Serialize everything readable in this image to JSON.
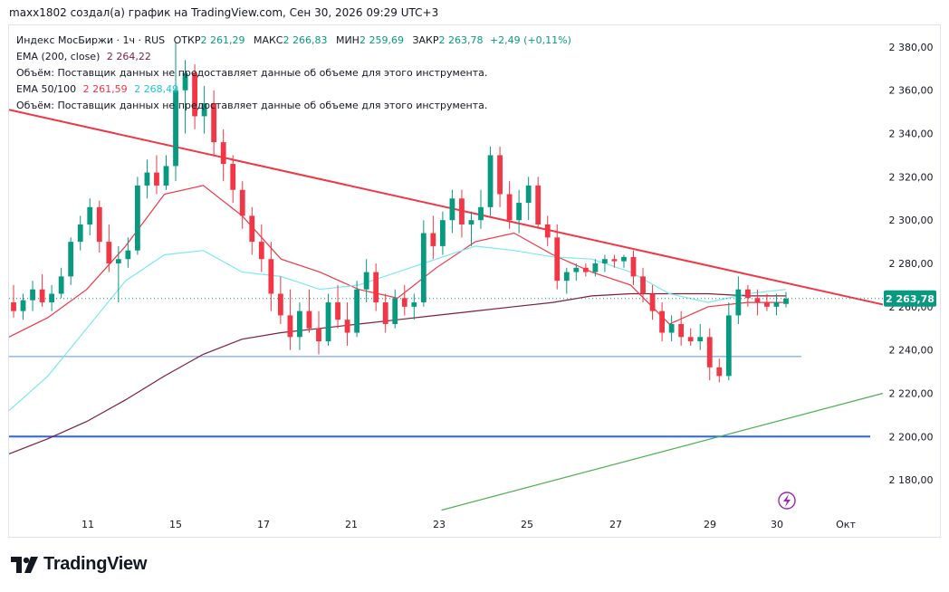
{
  "header": {
    "attribution": "maxx1802 создал(а) график на TradingView.com, Сен 30, 2026 09:29 UTC+3"
  },
  "legend": {
    "symbol": "Индекс МосБиржи · 1ч · RUS",
    "open_label": "ОТКР",
    "open_value": "2 261,29",
    "high_label": "МАКС",
    "high_value": "2 266,83",
    "low_label": "МИН",
    "low_value": "2 259,69",
    "close_label": "ЗАКР",
    "close_value": "2 263,78",
    "change": "+2,49 (+0,11%)",
    "ema200_label": "EMA (200, close)",
    "ema200_value": "2 264,22",
    "volume_note_1": "Объём: Поставщик данных не предоставляет данные об объеме для этого инструмента.",
    "ema50100_label": "EMA 50/100",
    "ema50_value": "2 261,59",
    "ema100_value": "2 268,49",
    "volume_note_2": "Объём: Поставщик данных не предоставляет данные об объеме для этого инструмента."
  },
  "logo": {
    "text": "TradingView"
  },
  "chart_data": {
    "type": "candlestick",
    "y_axis": {
      "min": 2165,
      "max": 2390,
      "ticks": [
        2180,
        2200,
        2220,
        2240,
        2260,
        2280,
        2300,
        2320,
        2340,
        2360,
        2380
      ],
      "tick_labels": [
        "2 180,00",
        "2 200,00",
        "2 220,00",
        "2 240,00",
        "2 260,00",
        "2 280,00",
        "2 300,00",
        "2 320,00",
        "2 340,00",
        "2 360,00",
        "2 380,00"
      ]
    },
    "x_axis": {
      "tick_labels": [
        "11",
        "15",
        "17",
        "21",
        "23",
        "25",
        "27",
        "29",
        "30",
        "Окт"
      ]
    },
    "last_price_label": "2 263,78",
    "last_price": 2263.78,
    "up_color": "#089981",
    "down_color": "#f23645",
    "candles": [
      {
        "o": 2262,
        "h": 2270,
        "l": 2255,
        "c": 2258
      },
      {
        "o": 2258,
        "h": 2266,
        "l": 2254,
        "c": 2263
      },
      {
        "o": 2263,
        "h": 2272,
        "l": 2258,
        "c": 2268
      },
      {
        "o": 2268,
        "h": 2275,
        "l": 2260,
        "c": 2262
      },
      {
        "o": 2262,
        "h": 2270,
        "l": 2258,
        "c": 2266
      },
      {
        "o": 2266,
        "h": 2278,
        "l": 2264,
        "c": 2274
      },
      {
        "o": 2274,
        "h": 2292,
        "l": 2270,
        "c": 2290
      },
      {
        "o": 2290,
        "h": 2302,
        "l": 2286,
        "c": 2298
      },
      {
        "o": 2298,
        "h": 2310,
        "l": 2293,
        "c": 2306
      },
      {
        "o": 2306,
        "h": 2309,
        "l": 2285,
        "c": 2290
      },
      {
        "o": 2290,
        "h": 2298,
        "l": 2276,
        "c": 2280
      },
      {
        "o": 2280,
        "h": 2288,
        "l": 2262,
        "c": 2282
      },
      {
        "o": 2282,
        "h": 2292,
        "l": 2278,
        "c": 2286
      },
      {
        "o": 2286,
        "h": 2320,
        "l": 2284,
        "c": 2316
      },
      {
        "o": 2316,
        "h": 2328,
        "l": 2310,
        "c": 2322
      },
      {
        "o": 2322,
        "h": 2330,
        "l": 2312,
        "c": 2316
      },
      {
        "o": 2316,
        "h": 2330,
        "l": 2314,
        "c": 2325
      },
      {
        "o": 2325,
        "h": 2382,
        "l": 2318,
        "c": 2360
      },
      {
        "o": 2360,
        "h": 2374,
        "l": 2340,
        "c": 2368
      },
      {
        "o": 2368,
        "h": 2372,
        "l": 2342,
        "c": 2348
      },
      {
        "o": 2348,
        "h": 2362,
        "l": 2340,
        "c": 2354
      },
      {
        "o": 2354,
        "h": 2360,
        "l": 2330,
        "c": 2336
      },
      {
        "o": 2336,
        "h": 2342,
        "l": 2318,
        "c": 2326
      },
      {
        "o": 2326,
        "h": 2330,
        "l": 2308,
        "c": 2314
      },
      {
        "o": 2314,
        "h": 2318,
        "l": 2296,
        "c": 2302
      },
      {
        "o": 2302,
        "h": 2306,
        "l": 2284,
        "c": 2290
      },
      {
        "o": 2290,
        "h": 2298,
        "l": 2276,
        "c": 2282
      },
      {
        "o": 2282,
        "h": 2290,
        "l": 2258,
        "c": 2266
      },
      {
        "o": 2266,
        "h": 2274,
        "l": 2252,
        "c": 2256
      },
      {
        "o": 2256,
        "h": 2268,
        "l": 2240,
        "c": 2246
      },
      {
        "o": 2246,
        "h": 2262,
        "l": 2240,
        "c": 2258
      },
      {
        "o": 2258,
        "h": 2268,
        "l": 2248,
        "c": 2250
      },
      {
        "o": 2250,
        "h": 2258,
        "l": 2238,
        "c": 2244
      },
      {
        "o": 2244,
        "h": 2266,
        "l": 2242,
        "c": 2262
      },
      {
        "o": 2262,
        "h": 2270,
        "l": 2250,
        "c": 2254
      },
      {
        "o": 2254,
        "h": 2262,
        "l": 2242,
        "c": 2248
      },
      {
        "o": 2248,
        "h": 2272,
        "l": 2246,
        "c": 2268
      },
      {
        "o": 2268,
        "h": 2282,
        "l": 2262,
        "c": 2276
      },
      {
        "o": 2276,
        "h": 2280,
        "l": 2258,
        "c": 2262
      },
      {
        "o": 2262,
        "h": 2266,
        "l": 2248,
        "c": 2252
      },
      {
        "o": 2252,
        "h": 2268,
        "l": 2250,
        "c": 2264
      },
      {
        "o": 2264,
        "h": 2270,
        "l": 2256,
        "c": 2260
      },
      {
        "o": 2260,
        "h": 2266,
        "l": 2254,
        "c": 2262
      },
      {
        "o": 2262,
        "h": 2300,
        "l": 2260,
        "c": 2294
      },
      {
        "o": 2294,
        "h": 2302,
        "l": 2282,
        "c": 2288
      },
      {
        "o": 2288,
        "h": 2304,
        "l": 2284,
        "c": 2300
      },
      {
        "o": 2300,
        "h": 2314,
        "l": 2294,
        "c": 2310
      },
      {
        "o": 2310,
        "h": 2314,
        "l": 2292,
        "c": 2298
      },
      {
        "o": 2298,
        "h": 2304,
        "l": 2288,
        "c": 2300
      },
      {
        "o": 2300,
        "h": 2314,
        "l": 2296,
        "c": 2306
      },
      {
        "o": 2306,
        "h": 2334,
        "l": 2302,
        "c": 2330
      },
      {
        "o": 2330,
        "h": 2334,
        "l": 2306,
        "c": 2312
      },
      {
        "o": 2312,
        "h": 2318,
        "l": 2296,
        "c": 2300
      },
      {
        "o": 2300,
        "h": 2314,
        "l": 2294,
        "c": 2308
      },
      {
        "o": 2308,
        "h": 2320,
        "l": 2300,
        "c": 2316
      },
      {
        "o": 2316,
        "h": 2320,
        "l": 2296,
        "c": 2298
      },
      {
        "o": 2298,
        "h": 2302,
        "l": 2288,
        "c": 2292
      },
      {
        "o": 2292,
        "h": 2298,
        "l": 2268,
        "c": 2272
      },
      {
        "o": 2272,
        "h": 2278,
        "l": 2266,
        "c": 2276
      },
      {
        "o": 2276,
        "h": 2280,
        "l": 2272,
        "c": 2278
      },
      {
        "o": 2278,
        "h": 2280,
        "l": 2274,
        "c": 2276
      },
      {
        "o": 2276,
        "h": 2282,
        "l": 2274,
        "c": 2280
      },
      {
        "o": 2280,
        "h": 2284,
        "l": 2276,
        "c": 2282
      },
      {
        "o": 2282,
        "h": 2284,
        "l": 2278,
        "c": 2281
      },
      {
        "o": 2281,
        "h": 2284,
        "l": 2278,
        "c": 2283
      },
      {
        "o": 2283,
        "h": 2286,
        "l": 2270,
        "c": 2274
      },
      {
        "o": 2274,
        "h": 2278,
        "l": 2262,
        "c": 2266
      },
      {
        "o": 2266,
        "h": 2270,
        "l": 2254,
        "c": 2258
      },
      {
        "o": 2258,
        "h": 2262,
        "l": 2244,
        "c": 2248
      },
      {
        "o": 2248,
        "h": 2256,
        "l": 2244,
        "c": 2252
      },
      {
        "o": 2252,
        "h": 2258,
        "l": 2242,
        "c": 2246
      },
      {
        "o": 2246,
        "h": 2250,
        "l": 2242,
        "c": 2244
      },
      {
        "o": 2244,
        "h": 2252,
        "l": 2240,
        "c": 2246
      },
      {
        "o": 2246,
        "h": 2250,
        "l": 2226,
        "c": 2232
      },
      {
        "o": 2232,
        "h": 2236,
        "l": 2225,
        "c": 2228
      },
      {
        "o": 2228,
        "h": 2262,
        "l": 2226,
        "c": 2256
      },
      {
        "o": 2256,
        "h": 2274,
        "l": 2252,
        "c": 2268
      },
      {
        "o": 2268,
        "h": 2270,
        "l": 2260,
        "c": 2264
      },
      {
        "o": 2264,
        "h": 2268,
        "l": 2256,
        "c": 2262
      },
      {
        "o": 2262,
        "h": 2266,
        "l": 2258,
        "c": 2260
      },
      {
        "o": 2260,
        "h": 2266,
        "l": 2256,
        "c": 2262
      },
      {
        "o": 2261.29,
        "h": 2266.83,
        "l": 2259.69,
        "c": 2263.78
      }
    ],
    "ema_lines": [
      {
        "name": "EMA (200, close)",
        "color": "#7b1f3f",
        "points": [
          2192,
          2199,
          2207,
          2217,
          2228,
          2238,
          2245,
          2248,
          2250,
          2252,
          2254,
          2256,
          2258,
          2260,
          2262,
          2265,
          2266,
          2266,
          2266,
          2265,
          2265
        ]
      },
      {
        "name": "EMA 50",
        "color": "#f23645",
        "points": [
          2246,
          2255,
          2268,
          2288,
          2312,
          2316,
          2302,
          2282,
          2276,
          2268,
          2264,
          2278,
          2290,
          2294,
          2284,
          2276,
          2270,
          2252,
          2260,
          2262,
          2262
        ]
      },
      {
        "name": "EMA 100",
        "color": "#7ce8f2",
        "points": [
          2212,
          2228,
          2250,
          2272,
          2284,
          2286,
          2276,
          2274,
          2268,
          2270,
          2276,
          2282,
          2288,
          2286,
          2283,
          2282,
          2276,
          2266,
          2262,
          2266,
          2268
        ]
      }
    ],
    "trendlines": [
      {
        "name": "resistance",
        "color": "#f23645",
        "from": [
          0,
          2351
        ],
        "to": [
          1,
          2261
        ]
      },
      {
        "name": "support-rising",
        "color": "#4caf50",
        "from": [
          0.5,
          2166
        ],
        "to": [
          1,
          2220
        ]
      }
    ],
    "horizontal_lines": [
      {
        "name": "level-2237",
        "value": 2237,
        "color": "#5b8ff9",
        "width": 1
      },
      {
        "name": "level-2200",
        "value": 2200,
        "color": "#2962ff",
        "width": 2
      }
    ]
  }
}
